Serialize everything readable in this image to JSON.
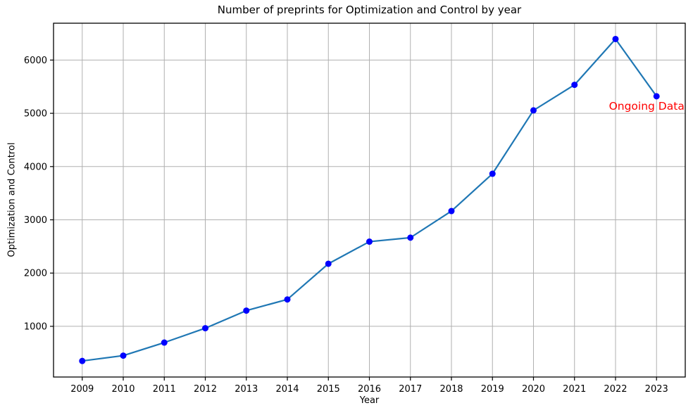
{
  "chart_data": {
    "type": "line",
    "title": "Number of preprints for Optimization and Control by year",
    "xlabel": "Year",
    "ylabel": "Optimization and Control",
    "x": [
      2009,
      2010,
      2011,
      2012,
      2013,
      2014,
      2015,
      2016,
      2017,
      2018,
      2019,
      2020,
      2021,
      2022,
      2023
    ],
    "values": [
      350,
      450,
      695,
      965,
      1295,
      1505,
      2175,
      2590,
      2665,
      3165,
      3865,
      5055,
      5535,
      6395,
      5320
    ],
    "xticks": [
      2009,
      2010,
      2011,
      2012,
      2013,
      2014,
      2015,
      2016,
      2017,
      2018,
      2019,
      2020,
      2021,
      2022,
      2023
    ],
    "yticks": [
      1000,
      2000,
      3000,
      4000,
      5000,
      6000
    ],
    "xlim": [
      2008.3,
      2023.7
    ],
    "ylim": [
      48,
      6692
    ],
    "grid": true,
    "legend": null,
    "line_color": "#1f77b4",
    "marker_color": "#0000ff",
    "grid_color": "#b0b0b0",
    "spine_color": "#000000",
    "annotation": {
      "text": "Ongoing Data",
      "color": "#ff0000",
      "x": 2023.68,
      "y": 5130,
      "anchor": "end"
    }
  }
}
